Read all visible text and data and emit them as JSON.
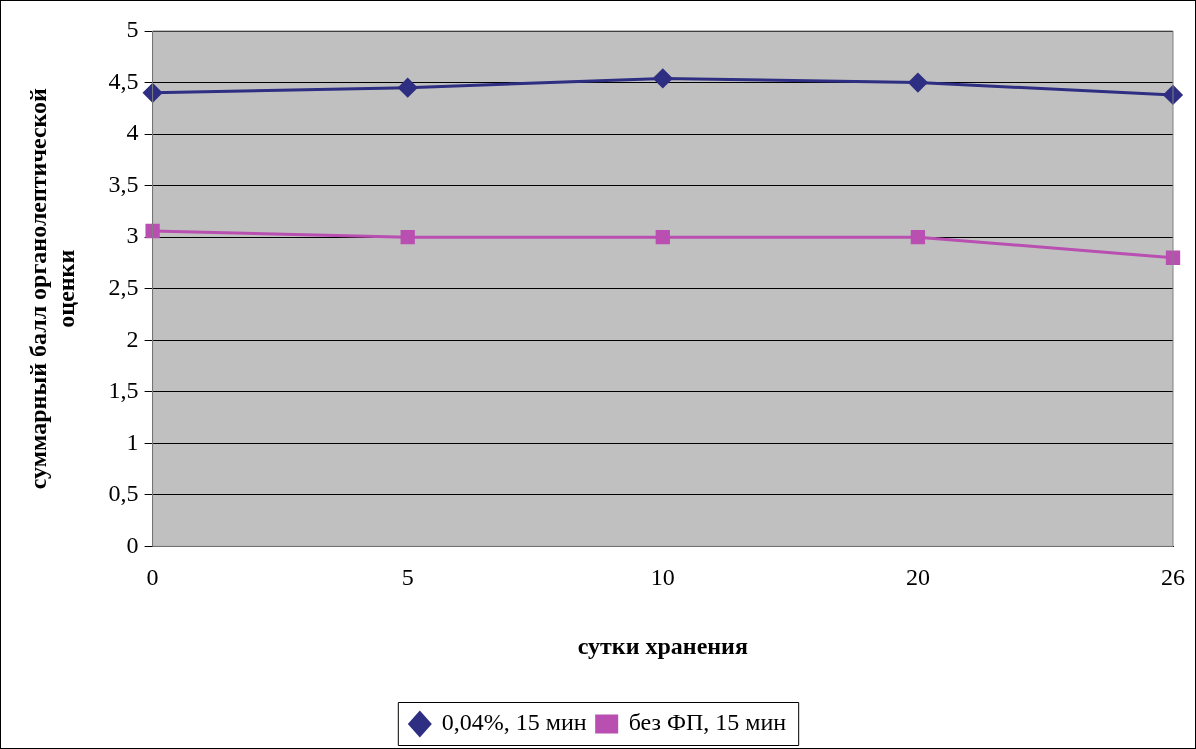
{
  "chart_data": {
    "type": "line",
    "xlabel": "сутки хранения",
    "ylabel": "суммарный балл органолептической оценки",
    "categories": [
      "0",
      "5",
      "10",
      "20",
      "26"
    ],
    "series": [
      {
        "name": "0,04%, 15 мин",
        "color": "#2e2e82",
        "marker": "diamond",
        "values": [
          4.4,
          4.45,
          4.54,
          4.5,
          4.38
        ]
      },
      {
        "name": "без ФП, 15 мин",
        "color": "#b94fb0",
        "marker": "square",
        "values": [
          3.06,
          3.0,
          3.0,
          3.0,
          2.8
        ]
      }
    ],
    "ylim": [
      0,
      5
    ],
    "yticks": [
      0,
      {
        "value": 0.5,
        "label": "0,5"
      },
      1,
      {
        "value": 1.5,
        "label": "1,5"
      },
      2,
      {
        "value": 2.5,
        "label": "2,5"
      },
      3,
      {
        "value": 3.5,
        "label": "3,5"
      },
      4,
      {
        "value": 4.5,
        "label": "4,5"
      },
      5
    ],
    "grid": "y",
    "legend": "bottom",
    "line_style": "solid"
  }
}
